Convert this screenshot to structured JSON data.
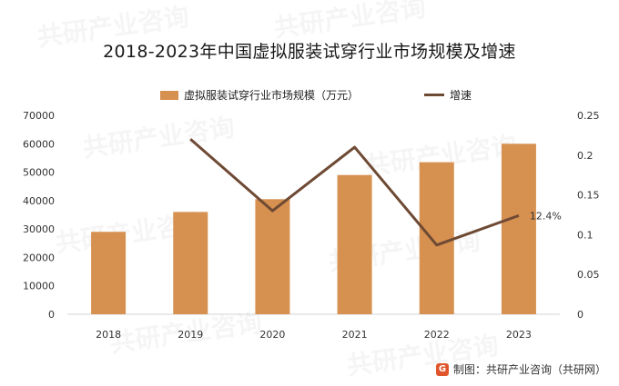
{
  "chart_data": {
    "type": "bar",
    "title": "2018-2023年中国虚拟服装试穿行业市场规模及增速",
    "categories": [
      "2018",
      "2019",
      "2020",
      "2021",
      "2022",
      "2023"
    ],
    "series": [
      {
        "name": "虚拟服装试穿行业市场规模（万元）",
        "type": "bar",
        "axis": "left",
        "color": "#d69050",
        "values": [
          29000,
          36000,
          40500,
          49000,
          53500,
          60000
        ]
      },
      {
        "name": "增速",
        "type": "line",
        "axis": "right",
        "color": "#6e4a34",
        "values": [
          null,
          0.22,
          0.13,
          0.21,
          0.087,
          0.124
        ]
      }
    ],
    "y_left": {
      "ticks": [
        "0",
        "10000",
        "20000",
        "30000",
        "40000",
        "50000",
        "60000",
        "70000"
      ],
      "lim": [
        0,
        70000
      ]
    },
    "y_right": {
      "ticks": [
        "0",
        "0.05",
        "0.1",
        "0.15",
        "0.2",
        "0.25"
      ],
      "lim": [
        0,
        0.25
      ]
    },
    "annotations": [
      {
        "category": "2023",
        "series": "增速",
        "text": "12.4%"
      }
    ],
    "legend_position": "top",
    "grid": false
  },
  "watermark_text": "共研产业咨询",
  "source": {
    "label": "制图：共研产业咨询（共研网）",
    "logo_glyph": "G"
  }
}
